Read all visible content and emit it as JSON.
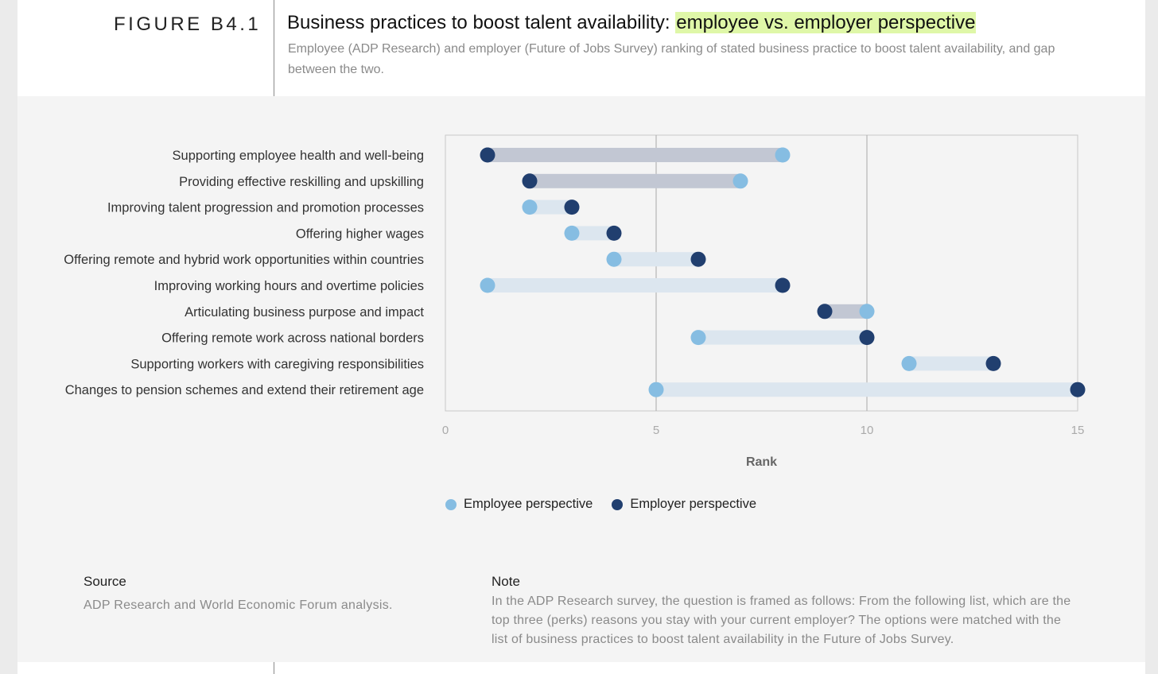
{
  "header": {
    "figure_label": "FIGURE B4.1",
    "title_main": "Business practices to boost talent availability: ",
    "title_highlight": "employee vs. employer perspective",
    "subtitle": "Employee (ADP Research) and employer (Future of Jobs Survey) ranking of stated business practice to boost talent availability, and gap between the two."
  },
  "colors": {
    "employee": "#86bde2",
    "employer": "#213f6f",
    "bar_employer_first": "#c2c7d3",
    "bar_employee_first": "#dce6ef",
    "highlight": "#dff7a8"
  },
  "chart_data": {
    "type": "dumbbell",
    "categories": [
      "Supporting employee health and well-being",
      "Providing effective reskilling and upskilling",
      "Improving talent progression and promotion processes",
      "Offering higher wages",
      "Offering remote and hybrid work opportunities within countries",
      "Improving working hours and overtime policies",
      "Articulating business purpose and impact",
      "Offering remote work across national borders",
      "Supporting workers with caregiving responsibilities",
      "Changes to pension schemes and extend their retirement age"
    ],
    "series": [
      {
        "name": "Employee perspective",
        "values": [
          8,
          7,
          2,
          3,
          4,
          1,
          10,
          6,
          11,
          5
        ]
      },
      {
        "name": "Employer perspective",
        "values": [
          1,
          2,
          3,
          4,
          6,
          8,
          9,
          10,
          13,
          15
        ]
      }
    ],
    "xlabel": "Rank",
    "xlim": [
      0,
      15
    ],
    "xticks": [
      "0",
      "5",
      "10",
      "15"
    ],
    "grid": "vertical",
    "legend_position": "bottom"
  },
  "legend": {
    "employee": "Employee perspective",
    "employer": "Employer perspective"
  },
  "footer": {
    "source_heading": "Source",
    "source_text": "ADP Research and World Economic Forum analysis.",
    "note_heading": "Note",
    "note_text": "In the ADP Research survey, the question is framed as follows: From the following list, which are the top three (perks) reasons you stay with your current employer? The options were matched with the list of business practices to boost talent availability in the Future of Jobs Survey."
  }
}
